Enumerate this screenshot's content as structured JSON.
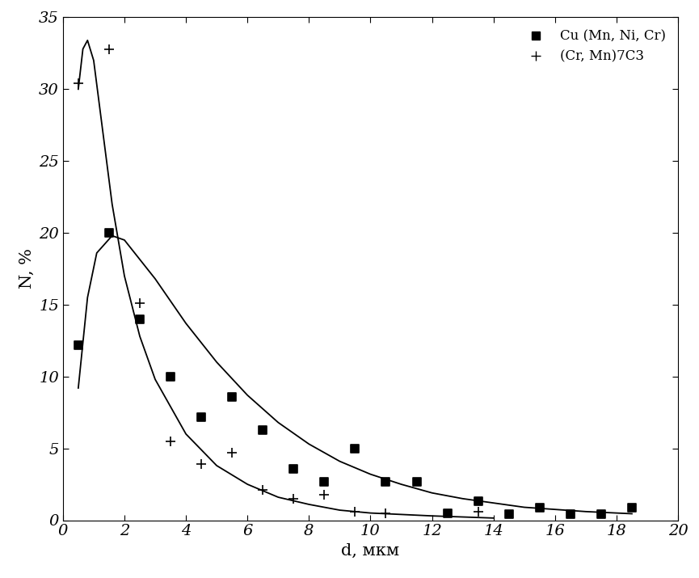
{
  "chart_data": {
    "type": "scatter",
    "x_label": "d, мкм",
    "y_label": "N, %",
    "xlim": [
      0,
      20
    ],
    "xticks": [
      0,
      2,
      4,
      6,
      8,
      10,
      12,
      14,
      16,
      18,
      20
    ],
    "ylim": [
      0,
      35
    ],
    "yticks": [
      0,
      5,
      10,
      15,
      20,
      25,
      30,
      35
    ],
    "legend": "upper right",
    "series": [
      {
        "name": "Cu (Mn, Ni, Cr)",
        "type": "scatter",
        "marker": "square",
        "color": "#000000",
        "x": [
          0.5,
          1.5,
          2.5,
          3.5,
          4.5,
          5.5,
          6.5,
          7.5,
          8.5,
          9.5,
          10.5,
          11.5,
          12.5,
          13.5,
          14.5,
          15.5,
          16.5,
          17.5,
          18.5
        ],
        "values": [
          12.2,
          20.0,
          14.0,
          10.0,
          7.2,
          8.6,
          6.3,
          3.6,
          2.7,
          5.0,
          2.7,
          2.7,
          0.5,
          1.3,
          0.4,
          0.9,
          0.4,
          0.4,
          0.9
        ]
      },
      {
        "name": "(Cr, Mn)7C3",
        "type": "scatter",
        "marker": "plus",
        "color": "#000000",
        "x": [
          0.5,
          1.5,
          2.5,
          3.5,
          4.5,
          5.5,
          6.5,
          7.5,
          8.5,
          9.5,
          10.5,
          13.5
        ],
        "values": [
          30.4,
          32.8,
          15.1,
          5.5,
          3.9,
          4.7,
          2.1,
          1.5,
          1.8,
          0.6,
          0.5,
          0.6
        ]
      },
      {
        "type": "line",
        "line_style": "solid",
        "color": "#000000",
        "x": [
          0.5,
          0.8,
          1.1,
          1.6,
          2.0,
          3.0,
          4.0,
          5.0,
          6.0,
          7.0,
          8.0,
          9.0,
          10.0,
          11.0,
          12.0,
          13.0,
          14.0,
          15.0,
          16.0,
          17.0,
          18.5
        ],
        "values": [
          9.2,
          15.5,
          18.6,
          19.8,
          19.5,
          16.8,
          13.7,
          11.0,
          8.7,
          6.8,
          5.3,
          4.1,
          3.2,
          2.5,
          1.9,
          1.5,
          1.2,
          0.9,
          0.75,
          0.6,
          0.45
        ]
      },
      {
        "type": "line",
        "line_style": "solid",
        "color": "#000000",
        "x": [
          0.5,
          0.65,
          0.8,
          1.0,
          1.3,
          1.6,
          2.0,
          2.5,
          3.0,
          4.0,
          5.0,
          6.0,
          7.0,
          8.0,
          9.0,
          10.0,
          12.0,
          14.0
        ],
        "values": [
          30.0,
          32.8,
          33.4,
          32.0,
          27.0,
          22.0,
          17.0,
          12.8,
          9.8,
          6.0,
          3.8,
          2.5,
          1.6,
          1.1,
          0.7,
          0.5,
          0.3,
          0.15
        ]
      }
    ]
  }
}
